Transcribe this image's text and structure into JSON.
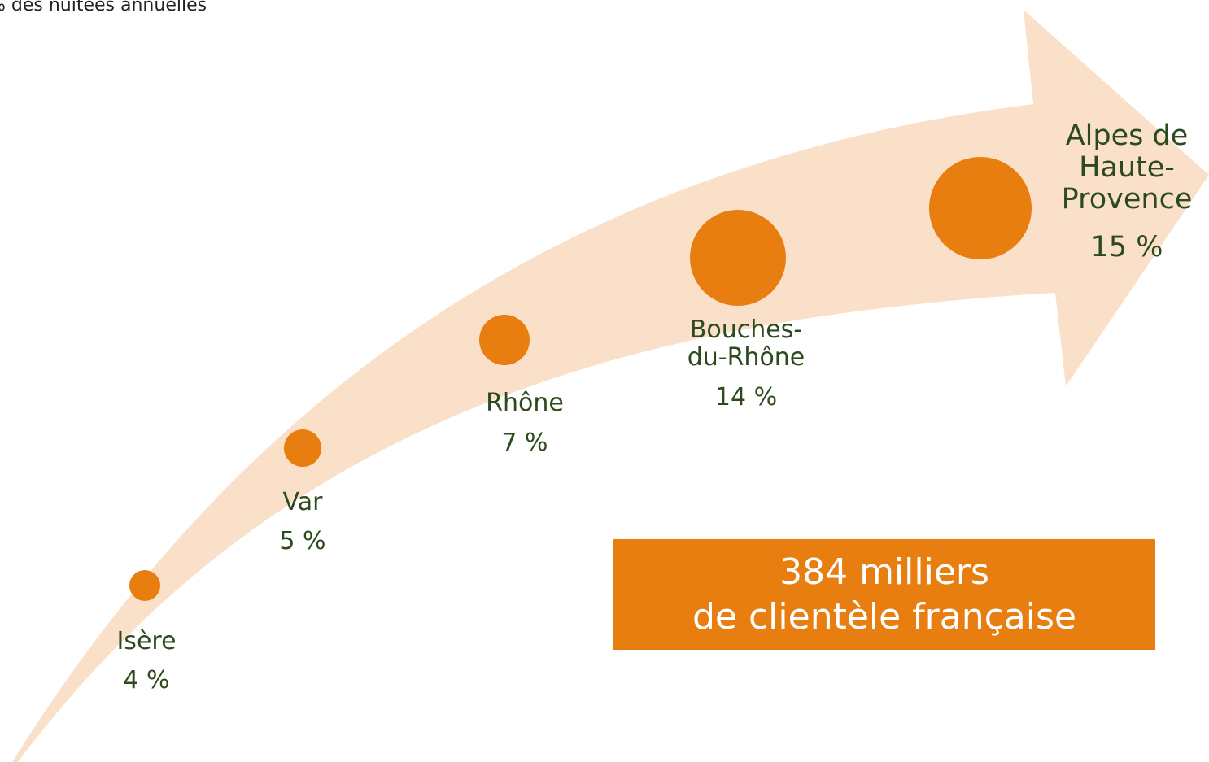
{
  "chart_data": {
    "type": "bubble",
    "title": "% des nuitées annuelles",
    "categories": [
      "Isère",
      "Var",
      "Rhône",
      "Bouches-du-Rhône",
      "Alpes de Haute-Provence"
    ],
    "values": [
      4,
      5,
      7,
      14,
      15
    ],
    "value_labels": [
      "4 %",
      "5 %",
      "7 %",
      "14 %",
      "15 %"
    ],
    "color": "#e87d10",
    "annotation": [
      "384 milliers",
      "de clientèle française"
    ]
  }
}
